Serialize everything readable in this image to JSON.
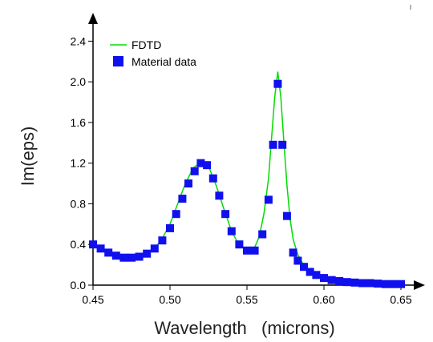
{
  "chart_data": {
    "type": "scatter",
    "xlabel": "Wavelength   (microns)",
    "ylabel": "Im(eps)",
    "xlim": [
      0.45,
      0.65
    ],
    "ylim": [
      0.0,
      2.6
    ],
    "xticks": [
      "0.45",
      "0.50",
      "0.55",
      "0.60",
      "0.65"
    ],
    "xtick_values": [
      0.45,
      0.5,
      0.55,
      0.6,
      0.65
    ],
    "yticks": [
      "0.0",
      "0.4",
      "0.8",
      "1.2",
      "1.6",
      "2.0",
      "2.4"
    ],
    "ytick_values": [
      0.0,
      0.4,
      0.8,
      1.2,
      1.6,
      2.0,
      2.4
    ],
    "grid": false,
    "legend_position": "top-left",
    "series": [
      {
        "name": "FDTD",
        "style": "line",
        "color": "#00dd00",
        "x": [
          0.45,
          0.455,
          0.46,
          0.465,
          0.47,
          0.475,
          0.48,
          0.485,
          0.49,
          0.495,
          0.5,
          0.505,
          0.51,
          0.515,
          0.52,
          0.522,
          0.525,
          0.53,
          0.535,
          0.54,
          0.545,
          0.55,
          0.555,
          0.558,
          0.561,
          0.564,
          0.566,
          0.568,
          0.57,
          0.572,
          0.574,
          0.576,
          0.578,
          0.58,
          0.583,
          0.586,
          0.59,
          0.595,
          0.6,
          0.61,
          0.62,
          0.63,
          0.64,
          0.65
        ],
        "y": [
          0.4,
          0.36,
          0.32,
          0.29,
          0.27,
          0.26,
          0.27,
          0.3,
          0.36,
          0.46,
          0.6,
          0.8,
          1.0,
          1.15,
          1.21,
          1.21,
          1.17,
          0.98,
          0.75,
          0.53,
          0.39,
          0.34,
          0.37,
          0.48,
          0.7,
          1.05,
          1.45,
          1.85,
          2.1,
          1.85,
          1.4,
          0.98,
          0.65,
          0.45,
          0.3,
          0.22,
          0.15,
          0.1,
          0.07,
          0.04,
          0.03,
          0.02,
          0.015,
          0.01
        ]
      },
      {
        "name": "Material data",
        "style": "markers",
        "color": "#1010ee",
        "x": [
          0.45,
          0.455,
          0.46,
          0.465,
          0.47,
          0.475,
          0.48,
          0.485,
          0.49,
          0.495,
          0.5,
          0.504,
          0.508,
          0.512,
          0.516,
          0.52,
          0.524,
          0.528,
          0.532,
          0.536,
          0.54,
          0.545,
          0.55,
          0.555,
          0.56,
          0.564,
          0.567,
          0.57,
          0.573,
          0.576,
          0.58,
          0.583,
          0.587,
          0.591,
          0.595,
          0.6,
          0.605,
          0.61,
          0.615,
          0.62,
          0.625,
          0.63,
          0.635,
          0.64,
          0.645,
          0.65
        ],
        "y": [
          0.4,
          0.36,
          0.32,
          0.29,
          0.27,
          0.27,
          0.28,
          0.31,
          0.36,
          0.44,
          0.56,
          0.7,
          0.85,
          1.0,
          1.12,
          1.2,
          1.18,
          1.05,
          0.88,
          0.7,
          0.53,
          0.4,
          0.34,
          0.34,
          0.5,
          0.84,
          1.38,
          1.98,
          1.38,
          0.68,
          0.32,
          0.24,
          0.18,
          0.13,
          0.1,
          0.07,
          0.05,
          0.04,
          0.03,
          0.025,
          0.02,
          0.02,
          0.015,
          0.01,
          0.01,
          0.01
        ]
      }
    ]
  }
}
